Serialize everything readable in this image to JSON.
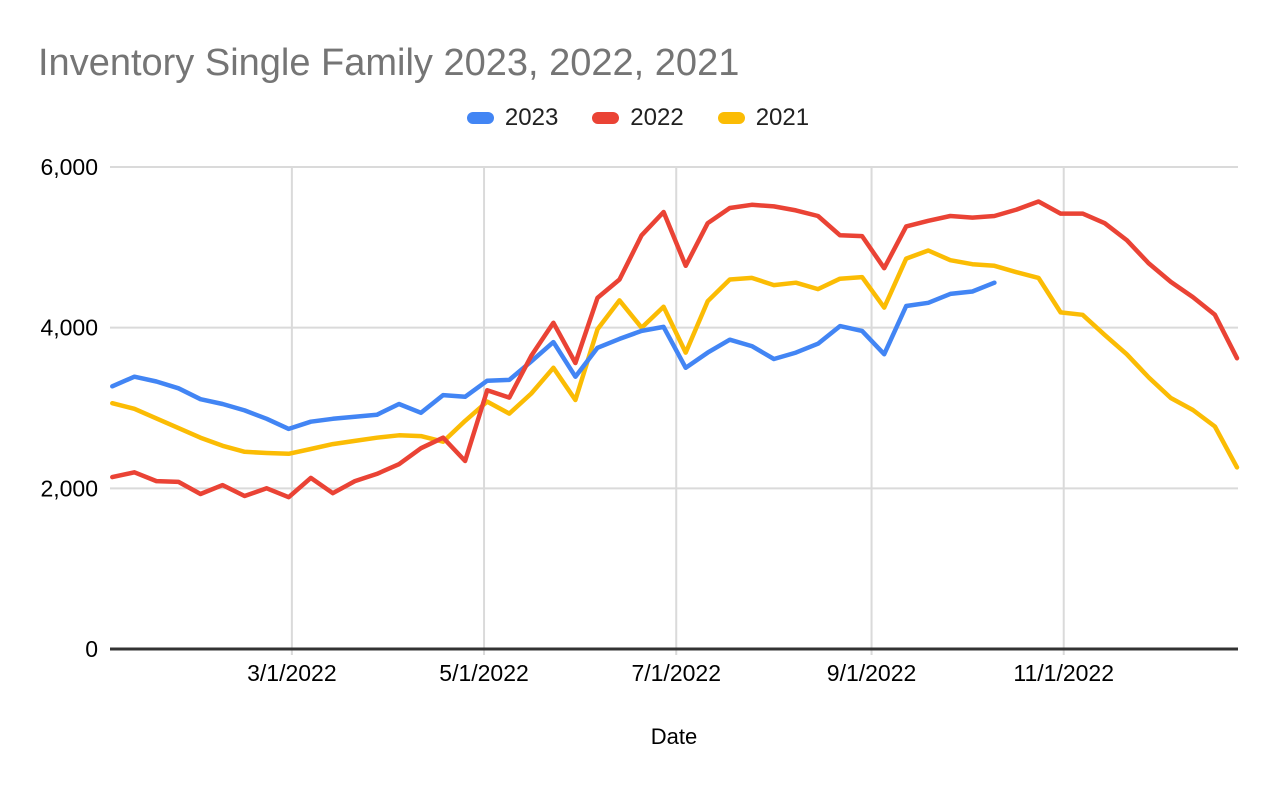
{
  "title": "Inventory Single Family 2023, 2022, 2021",
  "chart_data": {
    "type": "line",
    "title": "Inventory Single Family 2023, 2022, 2021",
    "xlabel": "Date",
    "ylabel": "",
    "ylim": [
      0,
      6000
    ],
    "grid": true,
    "legend_position": "top-center",
    "background_color": "#ffffff",
    "gridline_color": "#dadada",
    "axis_line_color": "#333333",
    "title_color": "#757575",
    "tick_label_color": "#000000",
    "y_ticks": [
      {
        "value": 0,
        "label": "0"
      },
      {
        "value": 2000,
        "label": "2,000"
      },
      {
        "value": 4000,
        "label": "4,000"
      },
      {
        "value": 6000,
        "label": "6,000"
      }
    ],
    "x_ticks": [
      "3/1/2022",
      "5/1/2022",
      "7/1/2022",
      "9/1/2022",
      "11/1/2022"
    ],
    "x_dates": [
      "1/3",
      "1/10",
      "1/17",
      "1/24",
      "1/31",
      "2/7",
      "2/14",
      "2/21",
      "2/28",
      "3/7",
      "3/14",
      "3/21",
      "3/28",
      "4/4",
      "4/11",
      "4/18",
      "4/25",
      "5/2",
      "5/9",
      "5/16",
      "5/23",
      "5/30",
      "6/6",
      "6/13",
      "6/20",
      "6/27",
      "7/4",
      "7/11",
      "7/18",
      "7/25",
      "8/1",
      "8/8",
      "8/15",
      "8/22",
      "8/29",
      "9/5",
      "9/12",
      "9/19",
      "9/26",
      "10/3",
      "10/10",
      "10/17",
      "10/24",
      "10/31",
      "11/7",
      "11/14",
      "11/21",
      "11/28",
      "12/5",
      "12/12",
      "12/19",
      "12/26"
    ],
    "series": [
      {
        "name": "2023",
        "color": "#4285F4",
        "values": [
          3270,
          3390,
          3330,
          3245,
          3110,
          3050,
          2970,
          2865,
          2740,
          2830,
          2865,
          2890,
          2915,
          3050,
          2940,
          3160,
          3140,
          3340,
          3350,
          3580,
          3820,
          3390,
          3750,
          3860,
          3960,
          4010,
          3500,
          3690,
          3850,
          3770,
          3610,
          3690,
          3800,
          4020,
          3960,
          3670,
          4270,
          4310,
          4420,
          4450,
          4560
        ]
      },
      {
        "name": "2022",
        "color": "#EA4335",
        "values": [
          2140,
          2200,
          2090,
          2080,
          1930,
          2040,
          1905,
          2000,
          1890,
          2130,
          1940,
          2090,
          2180,
          2300,
          2500,
          2630,
          2340,
          3220,
          3130,
          3650,
          4060,
          3560,
          4370,
          4600,
          5150,
          5440,
          4770,
          5300,
          5490,
          5530,
          5510,
          5460,
          5390,
          5150,
          5140,
          4740,
          5260,
          5330,
          5390,
          5370,
          5390,
          5470,
          5570,
          5420,
          5420,
          5300,
          5090,
          4800,
          4570,
          4380,
          4160,
          3620
        ]
      },
      {
        "name": "2021",
        "color": "#FBBC04",
        "values": [
          3060,
          2990,
          2870,
          2750,
          2630,
          2530,
          2455,
          2440,
          2430,
          2490,
          2550,
          2590,
          2630,
          2660,
          2650,
          2580,
          2840,
          3080,
          2930,
          3180,
          3500,
          3100,
          3980,
          4340,
          4000,
          4260,
          3690,
          4330,
          4600,
          4620,
          4530,
          4560,
          4480,
          4610,
          4630,
          4250,
          4860,
          4960,
          4840,
          4790,
          4770,
          4690,
          4620,
          4190,
          4160,
          3910,
          3670,
          3380,
          3125,
          2975,
          2770,
          2260
        ]
      }
    ]
  }
}
